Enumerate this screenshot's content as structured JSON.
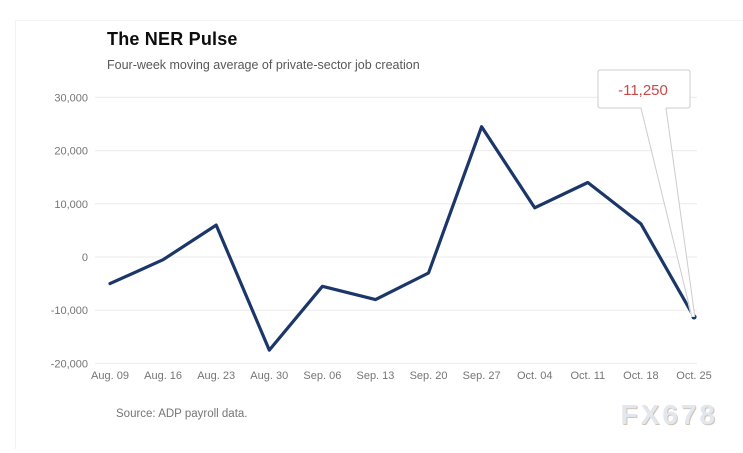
{
  "header": {
    "title": "The NER Pulse",
    "subtitle": "Four-week moving average of private-sector job creation"
  },
  "footer": {
    "source": "Source: ADP payroll data.",
    "watermark": "FX678"
  },
  "chart_data": {
    "type": "line",
    "title": "The NER Pulse",
    "subtitle": "Four-week moving average of private-sector job creation",
    "categories": [
      "Aug. 09",
      "Aug. 16",
      "Aug. 23",
      "Aug. 30",
      "Sep. 06",
      "Sep. 13",
      "Sep. 20",
      "Sep. 27",
      "Oct. 04",
      "Oct. 11",
      "Oct. 18",
      "Oct. 25"
    ],
    "values": [
      -5000,
      -500,
      6000,
      -17500,
      -5500,
      -8000,
      -3000,
      24500,
      9250,
      14000,
      6250,
      -11250
    ],
    "ylim": [
      -20000,
      30000
    ],
    "yticks": [
      30000,
      20000,
      10000,
      0,
      -10000,
      -20000
    ],
    "ytick_labels": [
      "30,000",
      "20,000",
      "10,000",
      "0",
      "-10,000",
      "-20,000"
    ],
    "grid": true,
    "legend": "none",
    "annotation": {
      "text": "-11,250",
      "target_category": "Oct. 25",
      "target_value": -11250
    },
    "source": "Source: ADP payroll data."
  },
  "colors": {
    "line": "#1b3668",
    "grid": "#ebebeb",
    "axis_text": "#757575",
    "annotation_text": "#c74a4a",
    "annotation_border": "#cccccc",
    "watermark": "#e2e7ee"
  }
}
